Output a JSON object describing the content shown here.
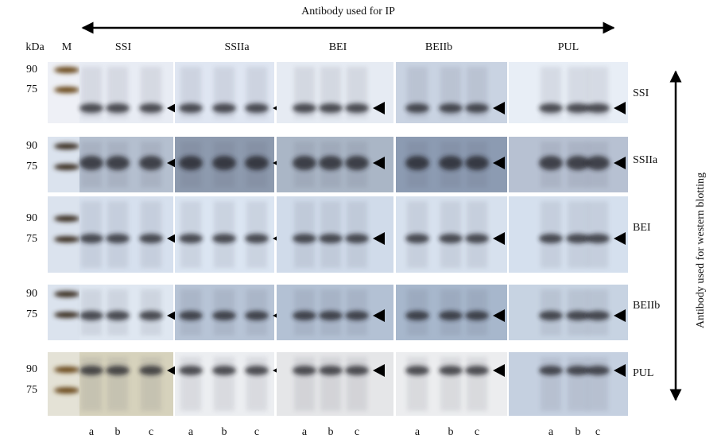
{
  "top_label": "Antibody used for IP",
  "side_label": "Antibody used for western blotting",
  "marker_header": {
    "unit": "kDa",
    "lane": "M"
  },
  "ip_antibodies": [
    "SSI",
    "SSIIa",
    "BEI",
    "BEIIb",
    "PUL"
  ],
  "rows": [
    {
      "antibody": "SSI",
      "markers": [
        "90",
        "75"
      ]
    },
    {
      "antibody": "SSIIa",
      "markers": [
        "90",
        "75"
      ]
    },
    {
      "antibody": "BEI",
      "markers": [
        "90",
        "75"
      ]
    },
    {
      "antibody": "BEIIb",
      "markers": [
        "90",
        "75"
      ]
    },
    {
      "antibody": "PUL",
      "markers": [
        "90",
        "75"
      ]
    }
  ],
  "lanes": [
    [
      "a",
      "b",
      "c"
    ],
    [
      "a",
      "b",
      "c"
    ],
    [
      "a",
      "b",
      "c"
    ],
    [
      "a",
      "b",
      "c"
    ],
    [
      "a",
      "b",
      "c"
    ]
  ]
}
